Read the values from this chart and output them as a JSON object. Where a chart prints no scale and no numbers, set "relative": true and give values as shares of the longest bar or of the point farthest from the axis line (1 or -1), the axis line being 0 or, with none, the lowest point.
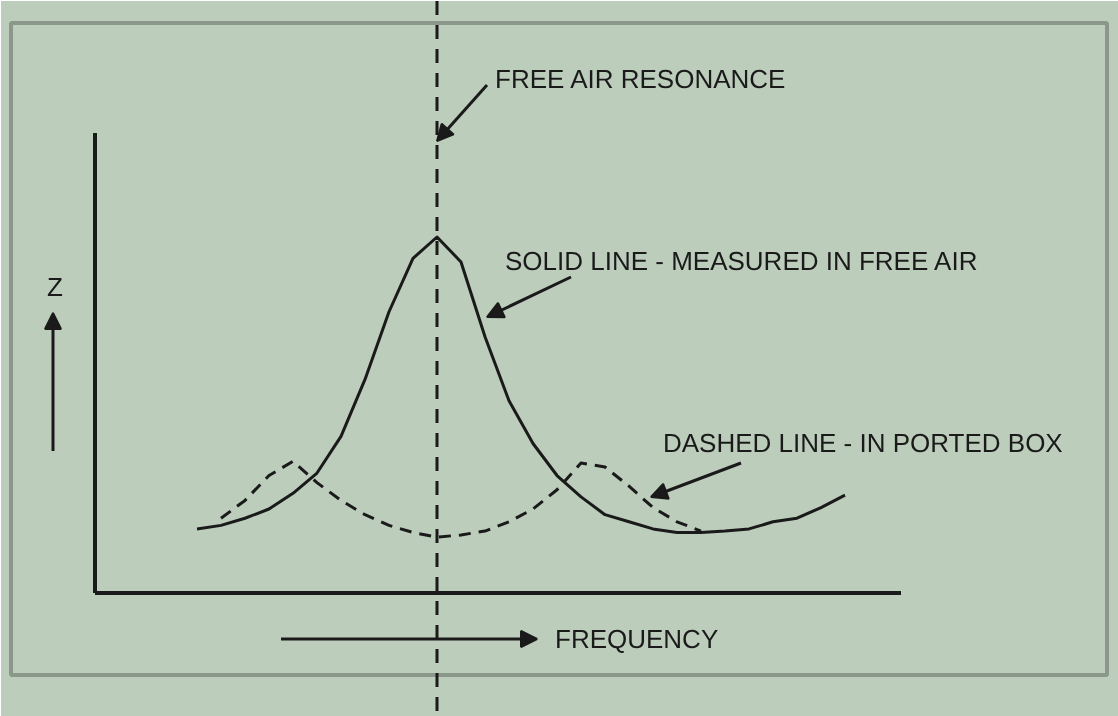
{
  "chart_data": {
    "type": "line",
    "relative": true,
    "xlabel": "FREQUENCY",
    "ylabel": "Z",
    "grid": false,
    "categories": [
      null,
      null,
      null,
      null,
      null,
      null,
      null,
      null,
      null,
      null,
      null,
      null,
      null,
      null,
      null,
      null,
      null,
      null,
      null,
      null,
      null,
      null,
      null,
      null,
      null,
      null,
      null,
      null
    ],
    "series": [
      {
        "name": "SOLID LINE - MEASURED IN FREE AIR",
        "color": "#1a1a1a",
        "line_style": "solid",
        "values": [
          0.18,
          0.19,
          0.21,
          0.236,
          0.28,
          0.337,
          0.44,
          0.6,
          0.79,
          0.94,
          1.0,
          0.93,
          0.72,
          0.54,
          0.42,
          0.33,
          0.27,
          0.22,
          0.2,
          0.18,
          0.17,
          0.17,
          0.174,
          0.18,
          0.2,
          0.21,
          0.24,
          0.275
        ]
      },
      {
        "name": "DASHED LINE - IN PORTED BOX",
        "color": "#1a1a1a",
        "line_style": "dashed",
        "values": [
          null,
          0.21,
          0.26,
          0.33,
          0.37,
          0.31,
          0.26,
          0.22,
          0.19,
          0.17,
          0.157,
          0.163,
          0.174,
          0.2,
          0.236,
          0.29,
          0.365,
          0.354,
          0.3,
          0.24,
          0.2,
          0.174,
          null,
          null,
          null,
          null,
          null,
          null
        ]
      }
    ],
    "annotations": [
      "FREE AIR RESONANCE"
    ]
  }
}
